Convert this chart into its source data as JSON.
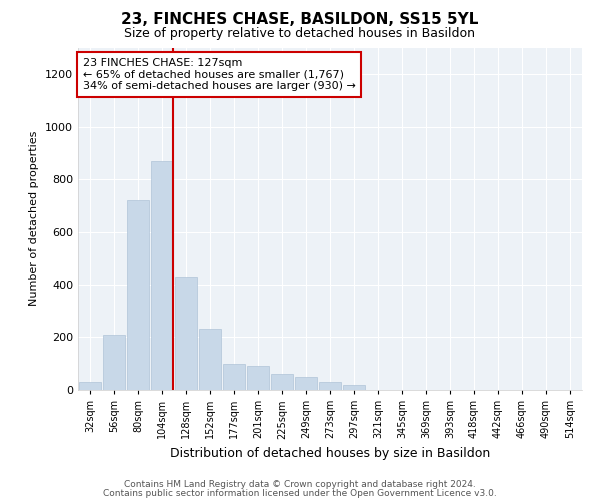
{
  "title": "23, FINCHES CHASE, BASILDON, SS15 5YL",
  "subtitle": "Size of property relative to detached houses in Basildon",
  "xlabel": "Distribution of detached houses by size in Basildon",
  "ylabel": "Number of detached properties",
  "bar_color": "#c8d8e8",
  "bar_edgecolor": "#b0c4d8",
  "background_color": "#edf2f7",
  "grid_color": "#ffffff",
  "categories": [
    "32sqm",
    "56sqm",
    "80sqm",
    "104sqm",
    "128sqm",
    "152sqm",
    "177sqm",
    "201sqm",
    "225sqm",
    "249sqm",
    "273sqm",
    "297sqm",
    "321sqm",
    "345sqm",
    "369sqm",
    "393sqm",
    "418sqm",
    "442sqm",
    "466sqm",
    "490sqm",
    "514sqm"
  ],
  "values": [
    30,
    210,
    720,
    870,
    430,
    230,
    100,
    90,
    60,
    50,
    30,
    20,
    0,
    0,
    0,
    0,
    0,
    0,
    0,
    0,
    0
  ],
  "ylim": [
    0,
    1300
  ],
  "yticks": [
    0,
    200,
    400,
    600,
    800,
    1000,
    1200
  ],
  "annotation_box_text": "23 FINCHES CHASE: 127sqm\n← 65% of detached houses are smaller (1,767)\n34% of semi-detached houses are larger (930) →",
  "vline_color": "#cc0000",
  "vline_pos": 4.5,
  "footer_line1": "Contains HM Land Registry data © Crown copyright and database right 2024.",
  "footer_line2": "Contains public sector information licensed under the Open Government Licence v3.0.",
  "title_fontsize": 11,
  "subtitle_fontsize": 9,
  "ylabel_fontsize": 8,
  "xlabel_fontsize": 9
}
